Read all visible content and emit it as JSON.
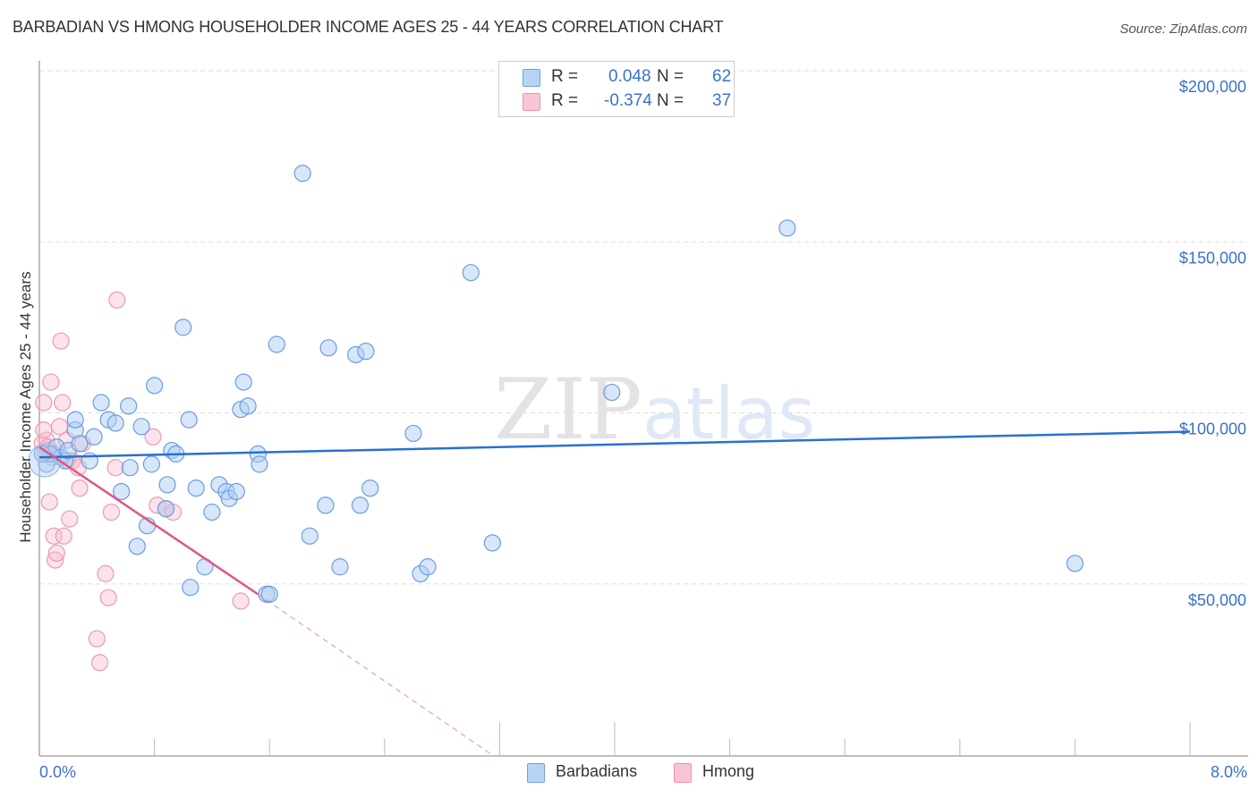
{
  "title": "BARBADIAN VS HMONG HOUSEHOLDER INCOME AGES 25 - 44 YEARS CORRELATION CHART",
  "source": "Source: ZipAtlas.com",
  "watermark": {
    "zip": "ZIP",
    "atlas": "atlas"
  },
  "legend": {
    "rows": [
      {
        "r_label": "R =",
        "r_value": "0.048",
        "n_label": "N =",
        "n_value": "62",
        "color": "#b8d3f4",
        "border": "#6fa0e0"
      },
      {
        "r_label": "R =",
        "r_value": "-0.374",
        "n_label": "N =",
        "n_value": "37",
        "color": "#f9c5d5",
        "border": "#e995b0"
      }
    ]
  },
  "bottom_legend": [
    {
      "label": "Barbadians",
      "color": "#b8d3f4",
      "border": "#6fa0e0"
    },
    {
      "label": "Hmong",
      "color": "#f9c5d5",
      "border": "#e995b0"
    }
  ],
  "axes": {
    "x_min_label": "0.0%",
    "x_max_label": "8.0%",
    "y_title": "Householder Income Ages 25 - 44 years",
    "y_ticks": [
      "$200,000",
      "$150,000",
      "$100,000",
      "$50,000"
    ]
  },
  "colors": {
    "blue_line": "#2a6fd4",
    "pink_line": "#e05585",
    "tick_text": "#3a72c9",
    "grid": "#dddddd"
  },
  "chart_data": {
    "type": "scatter",
    "title": "BARBADIAN VS HMONG HOUSEHOLDER INCOME AGES 25 - 44 YEARS CORRELATION CHART",
    "xlabel": "",
    "ylabel": "Householder Income Ages 25 - 44 years",
    "xlim": [
      0,
      8.0
    ],
    "ylim": [
      0,
      200000
    ],
    "x_unit": "%",
    "y_ticks": [
      50000,
      100000,
      150000,
      200000
    ],
    "grid": true,
    "legend_position": "top-center",
    "series": [
      {
        "name": "Barbadians",
        "R": 0.048,
        "N": 62,
        "trend": {
          "x": [
            0.0,
            8.0
          ],
          "y": [
            87000,
            94500
          ]
        },
        "points": [
          [
            0.05,
            85000
          ],
          [
            0.08,
            88000
          ],
          [
            0.12,
            90000
          ],
          [
            0.15,
            87000
          ],
          [
            0.18,
            86000
          ],
          [
            0.2,
            89000
          ],
          [
            0.25,
            95000
          ],
          [
            0.28,
            91000
          ],
          [
            0.25,
            98000
          ],
          [
            0.35,
            86000
          ],
          [
            0.38,
            93000
          ],
          [
            0.43,
            103000
          ],
          [
            0.48,
            98000
          ],
          [
            0.53,
            97000
          ],
          [
            0.57,
            77000
          ],
          [
            0.62,
            102000
          ],
          [
            0.63,
            84000
          ],
          [
            0.68,
            61000
          ],
          [
            0.71,
            96000
          ],
          [
            0.75,
            67000
          ],
          [
            0.78,
            85000
          ],
          [
            0.8,
            108000
          ],
          [
            0.88,
            72000
          ],
          [
            0.89,
            79000
          ],
          [
            0.92,
            89000
          ],
          [
            0.95,
            88000
          ],
          [
            1.0,
            125000
          ],
          [
            1.04,
            98000
          ],
          [
            1.05,
            49000
          ],
          [
            1.09,
            78000
          ],
          [
            1.15,
            55000
          ],
          [
            1.2,
            71000
          ],
          [
            1.25,
            79000
          ],
          [
            1.3,
            77000
          ],
          [
            1.32,
            75000
          ],
          [
            1.37,
            77000
          ],
          [
            1.4,
            101000
          ],
          [
            1.42,
            109000
          ],
          [
            1.45,
            102000
          ],
          [
            1.52,
            88000
          ],
          [
            1.53,
            85000
          ],
          [
            1.58,
            47000
          ],
          [
            1.6,
            47000
          ],
          [
            1.65,
            120000
          ],
          [
            1.83,
            170000
          ],
          [
            1.88,
            64000
          ],
          [
            1.99,
            73000
          ],
          [
            2.01,
            119000
          ],
          [
            2.09,
            55000
          ],
          [
            2.2,
            117000
          ],
          [
            2.23,
            73000
          ],
          [
            2.27,
            118000
          ],
          [
            2.3,
            78000
          ],
          [
            2.6,
            94000
          ],
          [
            2.65,
            53000
          ],
          [
            2.7,
            55000
          ],
          [
            3.0,
            141000
          ],
          [
            3.15,
            62000
          ],
          [
            3.98,
            106000
          ],
          [
            5.2,
            154000
          ],
          [
            7.2,
            56000
          ],
          [
            0.02,
            88000
          ]
        ]
      },
      {
        "name": "Hmong",
        "R": -0.374,
        "N": 37,
        "trend": {
          "x": [
            0.0,
            1.52
          ],
          "y": [
            90000,
            47000
          ]
        },
        "trend_extrapolated": {
          "x": [
            1.52,
            3.15
          ],
          "y": [
            47000,
            0
          ]
        },
        "points": [
          [
            0.02,
            91000
          ],
          [
            0.03,
            103000
          ],
          [
            0.04,
            88000
          ],
          [
            0.05,
            92000
          ],
          [
            0.06,
            90000
          ],
          [
            0.07,
            74000
          ],
          [
            0.08,
            109000
          ],
          [
            0.09,
            87000
          ],
          [
            0.1,
            64000
          ],
          [
            0.11,
            57000
          ],
          [
            0.12,
            59000
          ],
          [
            0.14,
            96000
          ],
          [
            0.15,
            121000
          ],
          [
            0.16,
            103000
          ],
          [
            0.17,
            64000
          ],
          [
            0.19,
            92000
          ],
          [
            0.2,
            86000
          ],
          [
            0.21,
            69000
          ],
          [
            0.23,
            86000
          ],
          [
            0.27,
            84000
          ],
          [
            0.28,
            78000
          ],
          [
            0.3,
            91000
          ],
          [
            0.4,
            34000
          ],
          [
            0.42,
            27000
          ],
          [
            0.46,
            53000
          ],
          [
            0.48,
            46000
          ],
          [
            0.5,
            71000
          ],
          [
            0.53,
            84000
          ],
          [
            0.54,
            133000
          ],
          [
            0.79,
            93000
          ],
          [
            0.82,
            73000
          ],
          [
            0.88,
            72000
          ],
          [
            0.93,
            71000
          ],
          [
            1.4,
            45000
          ],
          [
            0.06,
            89000
          ],
          [
            0.1,
            88000
          ],
          [
            0.03,
            95000
          ]
        ]
      }
    ]
  }
}
